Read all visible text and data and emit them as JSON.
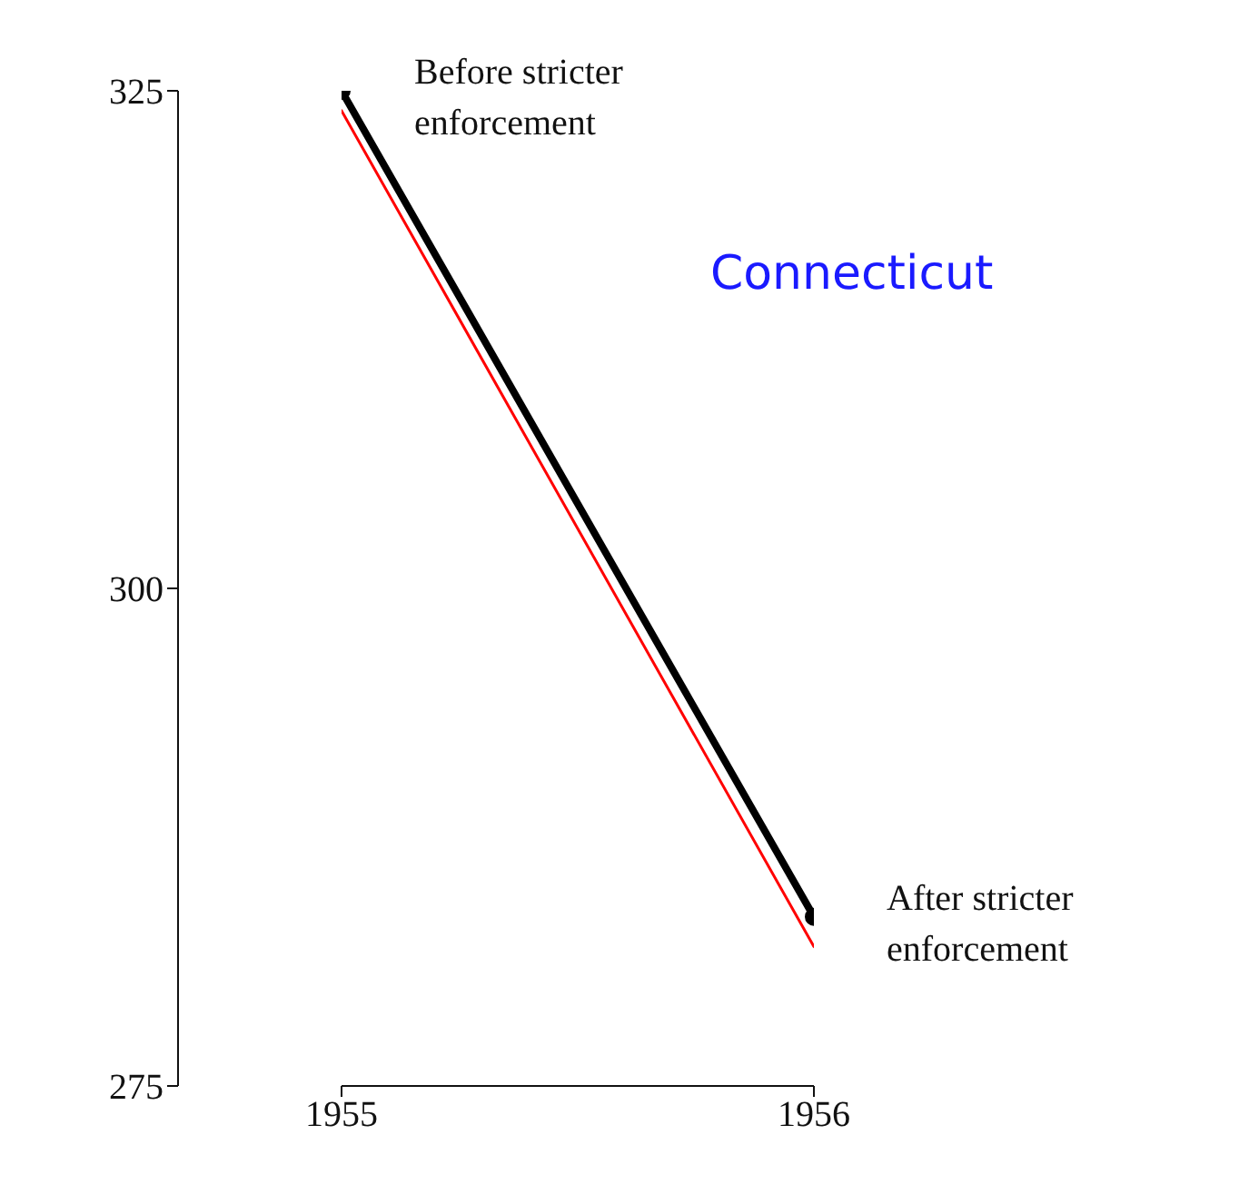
{
  "chart_data": {
    "type": "line",
    "title": "Connecticut",
    "x": [
      1955,
      1956
    ],
    "series": [
      {
        "color": "#000000",
        "values": [
          325,
          283.5
        ],
        "marker": "circle"
      },
      {
        "color": "#ff0000",
        "values": [
          324,
          282
        ],
        "marker": "none"
      }
    ],
    "xlim": [
      1955,
      1956
    ],
    "xticks": [
      1955,
      1956
    ],
    "ylim": [
      275,
      325
    ],
    "yticks": [
      275,
      300,
      325
    ],
    "annotations": [
      {
        "text": "Before stricter enforcement",
        "x": 1955,
        "y": 325
      },
      {
        "text": "After stricter enforcement",
        "x": 1956,
        "y": 283.5
      }
    ],
    "grid": false,
    "legend": false
  }
}
